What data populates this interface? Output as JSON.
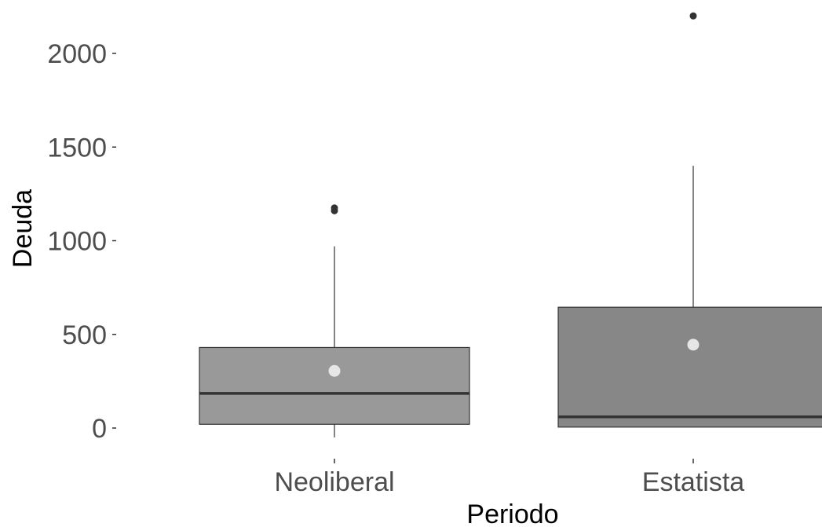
{
  "chart_data": {
    "type": "boxplot",
    "title": "",
    "xlabel": "Periodo",
    "ylabel": "Deuda",
    "categories": [
      "Neoliberal",
      "Estatista"
    ],
    "ylim": [
      -55,
      2250
    ],
    "yticks": [
      0,
      500,
      1000,
      1500,
      2000
    ],
    "ytick_labels": [
      "0",
      "500",
      "1000",
      "1500",
      "2000"
    ],
    "grid": false,
    "legend": "none",
    "boxes": [
      {
        "category": "Neoliberal",
        "whisker_low": -50,
        "q1": 20,
        "median": 185,
        "q3": 430,
        "whisker_high": 970,
        "mean": 305,
        "outliers": [
          1160,
          1175
        ],
        "fill": "#999999"
      },
      {
        "category": "Estatista",
        "whisker_low": 5,
        "q1": 5,
        "median": 60,
        "q3": 645,
        "whisker_high": 1400,
        "mean": 445,
        "outliers": [
          2200
        ],
        "fill": "#878787"
      }
    ],
    "colors": {
      "box_border": "#333333",
      "median_line": "#333333",
      "outlier": "#333333",
      "mean_point": "#e6e6e6",
      "tick_label": "#4d4d4d",
      "axis_title": "#000000"
    }
  }
}
